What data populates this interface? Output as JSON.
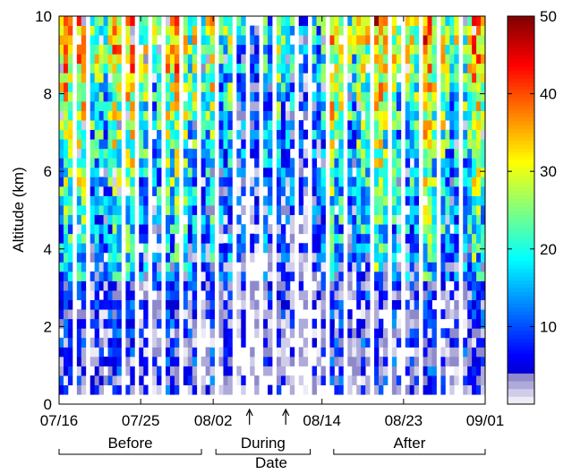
{
  "chart_data": {
    "type": "heatmap",
    "xlabel": "Date",
    "ylabel": "Altitude (km)",
    "x_start": "07/16",
    "x_end": "09/01",
    "x_ticks": [
      "07/16",
      "07/25",
      "08/02",
      "08/14",
      "08/23",
      "09/01"
    ],
    "y_ticks": [
      0,
      2,
      4,
      6,
      8,
      10
    ],
    "ylim": [
      0,
      10
    ],
    "altitude_min_km": 0.25,
    "colorbar": {
      "range": [
        0,
        50
      ],
      "ticks": [
        10,
        20,
        30,
        40,
        50
      ],
      "colormap": "jet",
      "low_values_colormap": "gray-lavender",
      "low_values_max": 4
    },
    "periods": [
      {
        "label": "Before",
        "start": "07/16",
        "end": "08/01"
      },
      {
        "label": "During",
        "start": "08/02",
        "end": "08/13"
      },
      {
        "label": "After",
        "start": "08/15",
        "end": "09/01"
      }
    ],
    "markers": [
      {
        "date": "08/06",
        "symbol": "arrow-up"
      },
      {
        "date": "08/10",
        "symbol": "arrow-up"
      }
    ],
    "no_data_columns": [
      3,
      6,
      14,
      17,
      20,
      23,
      27,
      31,
      35,
      39,
      42,
      45,
      48,
      53,
      56,
      60,
      64,
      70,
      74,
      77,
      81,
      85,
      90
    ]
  }
}
